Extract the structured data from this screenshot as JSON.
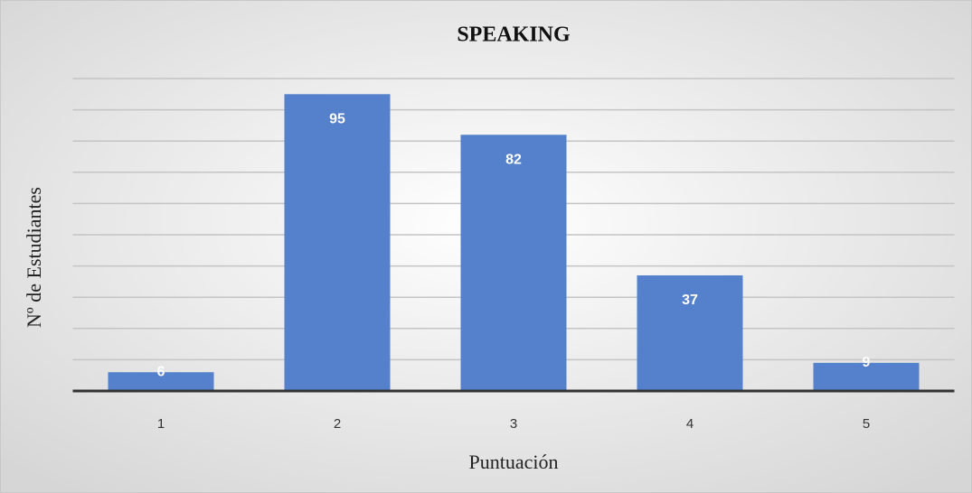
{
  "chart_data": {
    "type": "bar",
    "title": "SPEAKING",
    "x_label": "Puntuación",
    "y_label": "Nº de Estudiantes",
    "categories": [
      "1",
      "2",
      "3",
      "4",
      "5"
    ],
    "values": [
      6,
      95,
      82,
      37,
      9
    ],
    "color": "#5580cb",
    "ylim": [
      0,
      100
    ],
    "yticks": [
      0,
      10,
      20,
      30,
      40,
      50,
      60,
      70,
      80,
      90,
      100
    ],
    "grid": true
  }
}
